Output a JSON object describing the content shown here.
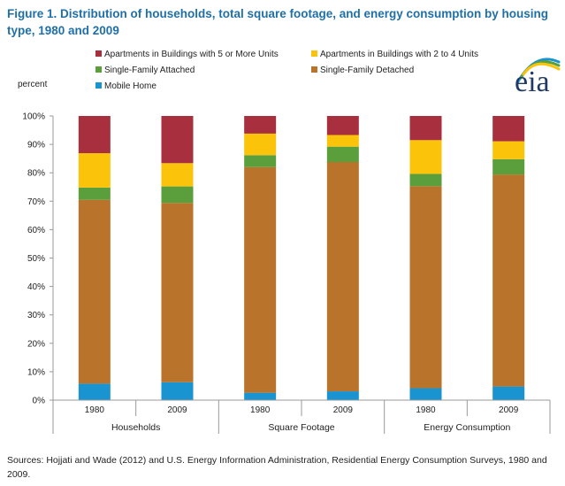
{
  "figure": {
    "title": "Figure 1. Distribution of households, total square footage, and energy consumption by housing type, 1980 and 2009",
    "source": "Sources: Hojjati and Wade (2012) and U.S. Energy Information Administration, Residential Energy Consumption Surveys, 1980 and 2009.",
    "logo_text": "eia"
  },
  "chart_data": {
    "type": "bar",
    "stacked": true,
    "ylabel": "percent",
    "ylim": [
      0,
      100
    ],
    "yticks": [
      "0%",
      "10%",
      "20%",
      "30%",
      "40%",
      "50%",
      "60%",
      "70%",
      "80%",
      "90%",
      "100%"
    ],
    "groups": [
      "Households",
      "Square Footage",
      "Energy Consumption"
    ],
    "categories": [
      "1980",
      "2009",
      "1980",
      "2009",
      "1980",
      "2009"
    ],
    "legend": [
      {
        "name": "Apartments in Buildings with 5 or More Units",
        "color": "#a8303e"
      },
      {
        "name": "Apartments in Buildings with 2 to 4 Units",
        "color": "#fcc30b"
      },
      {
        "name": "Single-Family Attached",
        "color": "#5b9e3c"
      },
      {
        "name": "Single-Family Detached",
        "color": "#b9732a"
      },
      {
        "name": "Mobile Home",
        "color": "#1a93d1"
      }
    ],
    "series": [
      {
        "name": "Mobile Home",
        "color": "#1a93d1",
        "values": [
          5.8,
          6.3,
          2.6,
          3.1,
          4.2,
          4.8
        ]
      },
      {
        "name": "Single-Family Detached",
        "color": "#b9732a",
        "values": [
          64.7,
          63.1,
          79.4,
          80.7,
          71.1,
          74.6
        ]
      },
      {
        "name": "Single-Family Attached",
        "color": "#5b9e3c",
        "values": [
          4.3,
          5.8,
          4.2,
          5.4,
          4.3,
          5.4
        ]
      },
      {
        "name": "Apartments in Buildings with 2 to 4 Units",
        "color": "#fcc30b",
        "values": [
          12.1,
          8.2,
          7.6,
          4.1,
          11.9,
          6.3
        ]
      },
      {
        "name": "Apartments in Buildings with 5 or More Units",
        "color": "#a8303e",
        "values": [
          13.1,
          16.6,
          6.2,
          6.7,
          8.5,
          8.9
        ]
      }
    ]
  }
}
